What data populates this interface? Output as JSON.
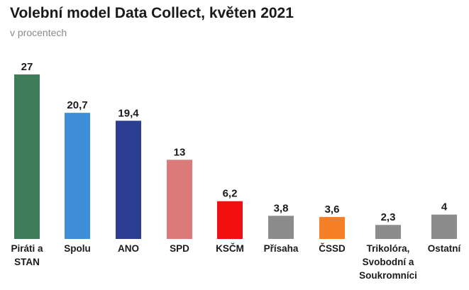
{
  "title": "Volební model Data Collect, květen 2021",
  "subtitle": "v procentech",
  "chart_data": {
    "type": "bar",
    "title": "Volební model Data Collect, květen 2021",
    "subtitle": "v procentech",
    "xlabel": "",
    "ylabel": "",
    "ylim": [
      0,
      27
    ],
    "grid": false,
    "legend": "none",
    "value_labels": [
      "27",
      "20,7",
      "19,4",
      "13",
      "6,2",
      "3,8",
      "3,6",
      "2,3",
      "4"
    ],
    "categories": [
      [
        "Piráti a",
        "STAN"
      ],
      [
        "Spolu"
      ],
      [
        "ANO"
      ],
      [
        "SPD"
      ],
      [
        "KSČM"
      ],
      [
        "Přísaha"
      ],
      [
        "ČSSD"
      ],
      [
        "Trikolóra,",
        "Svobodní a",
        "Soukromníci"
      ],
      [
        "Ostatní"
      ]
    ],
    "values": [
      27,
      20.7,
      19.4,
      13,
      6.2,
      3.8,
      3.6,
      2.3,
      4
    ],
    "colors": [
      "#3f7d5a",
      "#3f8fd8",
      "#2c3e91",
      "#dc7a7a",
      "#f20f0f",
      "#8c8c8c",
      "#f57f27",
      "#8c8c8c",
      "#8c8c8c"
    ]
  }
}
